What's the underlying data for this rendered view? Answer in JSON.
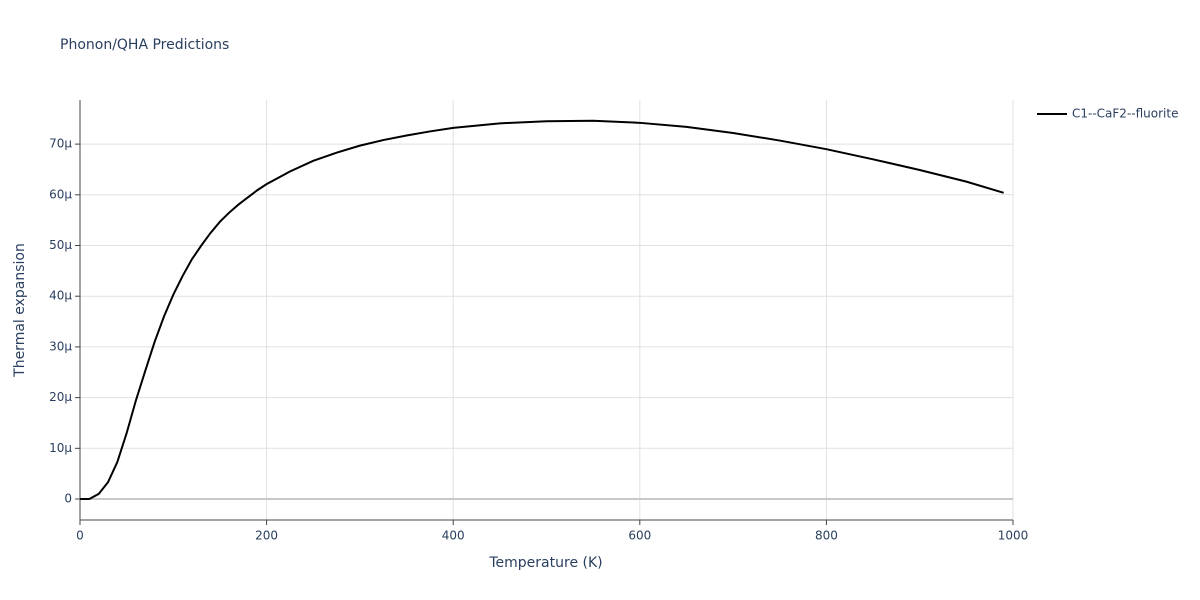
{
  "chart_data": {
    "type": "line",
    "title": "Phonon/QHA Predictions",
    "x_label": "Temperature (K)",
    "y_label": "Thermal expansion",
    "x": [
      0,
      10,
      20,
      30,
      40,
      50,
      60,
      70,
      80,
      90,
      100,
      110,
      120,
      130,
      140,
      150,
      160,
      170,
      180,
      190,
      200,
      225,
      250,
      275,
      300,
      325,
      350,
      375,
      400,
      450,
      500,
      550,
      600,
      650,
      700,
      750,
      800,
      850,
      900,
      950,
      990
    ],
    "series": [
      {
        "name": "C1--CaF2--fluorite",
        "color": "#000000",
        "values": [
          0,
          0,
          1e-06,
          3.3e-06,
          7.3e-06,
          1.3e-05,
          1.95e-05,
          2.53e-05,
          3.1e-05,
          3.6e-05,
          4.03e-05,
          4.4e-05,
          4.73e-05,
          5e-05,
          5.25e-05,
          5.47e-05,
          5.65e-05,
          5.81e-05,
          5.95e-05,
          6.09e-05,
          6.21e-05,
          6.46e-05,
          6.67e-05,
          6.83e-05,
          6.97e-05,
          7.08e-05,
          7.17e-05,
          7.25e-05,
          7.32e-05,
          7.41e-05,
          7.45e-05,
          7.46e-05,
          7.42e-05,
          7.34e-05,
          7.22e-05,
          7.07e-05,
          6.9e-05,
          6.7e-05,
          6.49e-05,
          6.26e-05,
          6.04e-05
        ]
      }
    ],
    "xlim": [
      0,
      1000
    ],
    "xticks": [
      0,
      200,
      400,
      600,
      800,
      1000
    ],
    "ylim": [
      -4.14e-06,
      7.87e-05
    ],
    "yticks": [
      0,
      {
        "value": 1e-05,
        "label": "10µ"
      },
      {
        "value": 2e-05,
        "label": "20µ"
      },
      {
        "value": 3e-05,
        "label": "30µ"
      },
      {
        "value": 4e-05,
        "label": "40µ"
      },
      {
        "value": 5e-05,
        "label": "50µ"
      },
      {
        "value": 6e-05,
        "label": "60µ"
      },
      {
        "value": 7e-05,
        "label": "70µ"
      }
    ],
    "grid": true,
    "legend": "right"
  }
}
